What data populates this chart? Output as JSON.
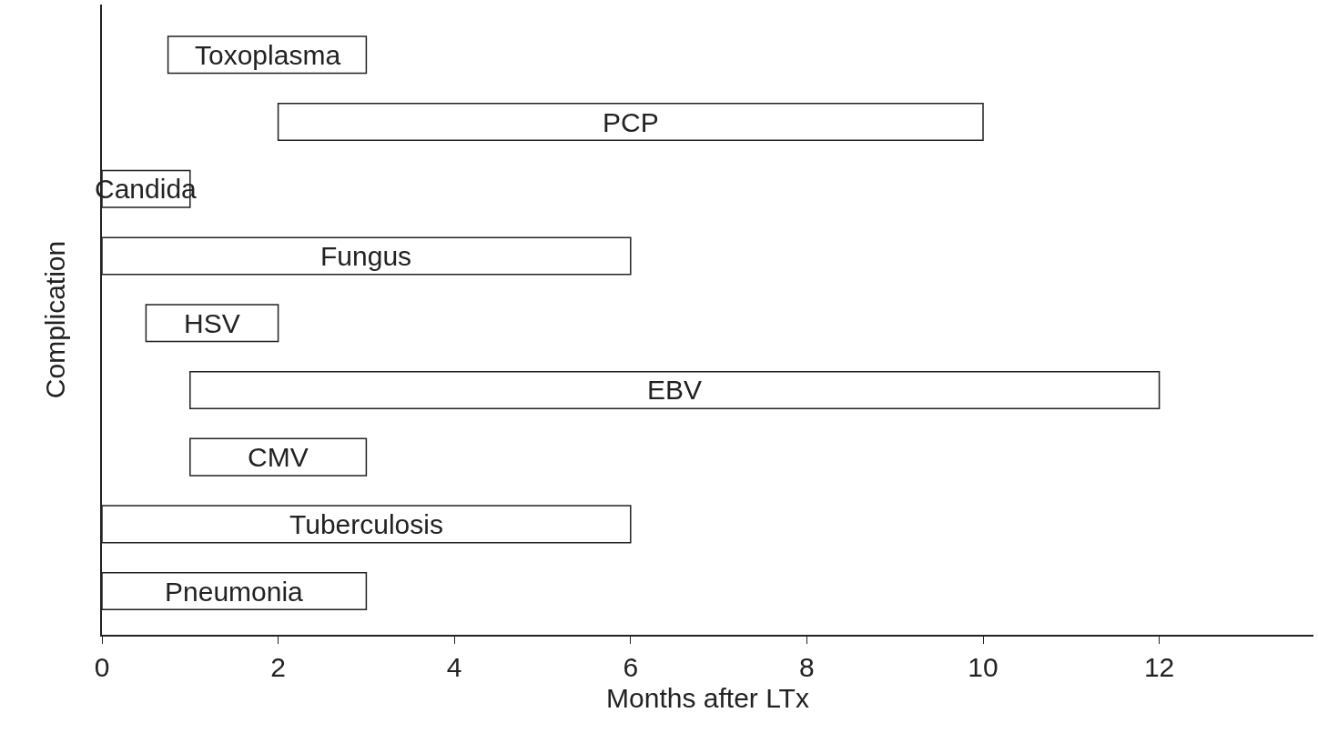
{
  "chart_data": {
    "type": "bar",
    "orientation": "horizontal",
    "xlabel": "Months after LTx",
    "ylabel": "Complication",
    "categories": [
      "Toxoplasma",
      "PCP",
      "Candida",
      "Fungus",
      "HSV",
      "EBV",
      "CMV",
      "Tuberculosis",
      "Pneumonia"
    ],
    "base": [
      0.75,
      2,
      0,
      0,
      0.5,
      1,
      1,
      0,
      0
    ],
    "values": [
      2.25,
      8,
      1,
      6,
      1.5,
      11,
      2,
      6,
      3
    ],
    "color": "#ffffff",
    "xlim": [
      0,
      13.75
    ],
    "xticks": [
      0,
      2,
      4,
      6,
      8,
      10,
      12
    ],
    "tick_labels": "x",
    "grid": false
  }
}
